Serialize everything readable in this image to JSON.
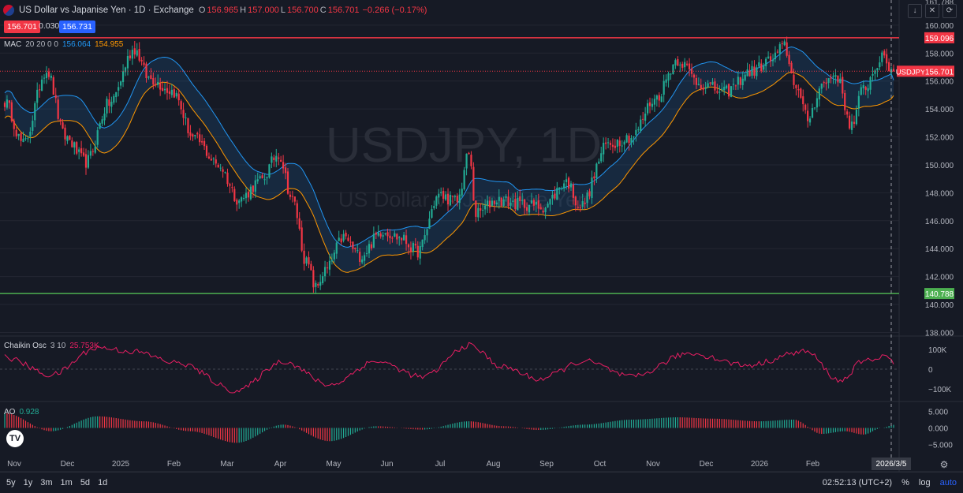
{
  "header": {
    "symbol_title": "US Dollar vs Japanise Yen · 1D · Exchange",
    "ohlc": [
      {
        "k": "O",
        "v": "156.965"
      },
      {
        "k": "H",
        "v": "157.000"
      },
      {
        "k": "L",
        "v": "156.700"
      },
      {
        "k": "C",
        "v": "156.701"
      },
      {
        "k": "",
        "v": "−0.266 (−0.17%)"
      }
    ],
    "sell_price": "156.701",
    "spread": "0.030",
    "buy_price": "156.731"
  },
  "indicators": {
    "mac": {
      "name": "MAC",
      "params": "20 20 0 0",
      "upper": "156.064",
      "lower": "154.955"
    },
    "chaikin": {
      "name": "Chaikin Osc",
      "params": "3 10",
      "value": "25.753K"
    },
    "ao": {
      "name": "AO",
      "value": "0.928"
    }
  },
  "watermark": {
    "main": "USDJPY, 1D",
    "sub": "US Dollar vs Japanise Yen"
  },
  "colors": {
    "up": "#22ab94",
    "down": "#f23645",
    "upper_band": "#2196f3",
    "lower_band": "#ff9800",
    "resistance": "#f23645",
    "support": "#4caf50",
    "chaikin": "#e91e63",
    "background": "#161a25"
  },
  "chart_data": [
    {
      "type": "candlestick",
      "title": "USDJPY, 1D",
      "x_ticks": [
        "Nov",
        "Dec",
        "2025",
        "Feb",
        "Mar",
        "Apr",
        "May",
        "Jun",
        "Jul",
        "Aug",
        "Sep",
        "Oct",
        "Nov",
        "Dec",
        "2026",
        "Feb"
      ],
      "cursor_date": "2026/3/5",
      "y_ticks": [
        138.0,
        140.0,
        142.0,
        144.0,
        146.0,
        148.0,
        150.0,
        152.0,
        154.0,
        156.0,
        158.0,
        160.0
      ],
      "ylim": [
        137.8,
        161.8
      ],
      "top_label": "161.788",
      "levels": [
        {
          "label": "159.096",
          "value": 159.096,
          "color": "#f23645"
        },
        {
          "label": "140.788",
          "value": 140.788,
          "color": "#4caf50"
        }
      ],
      "last_price": {
        "name": "USDJPY",
        "label": "156.701",
        "value": 156.701
      },
      "anchors": [
        [
          0,
          154.5
        ],
        [
          8,
          151.5
        ],
        [
          18,
          156.8
        ],
        [
          26,
          152.0
        ],
        [
          35,
          150.2
        ],
        [
          45,
          154.4
        ],
        [
          56,
          158.3
        ],
        [
          62,
          156.2
        ],
        [
          72,
          155.3
        ],
        [
          82,
          151.8
        ],
        [
          92,
          150.0
        ],
        [
          101,
          147.5
        ],
        [
          110,
          148.8
        ],
        [
          118,
          150.8
        ],
        [
          124,
          147.5
        ],
        [
          130,
          143.0
        ],
        [
          134,
          141.2
        ],
        [
          138,
          142.4
        ],
        [
          146,
          144.8
        ],
        [
          153,
          143.5
        ],
        [
          163,
          145.3
        ],
        [
          170,
          144.8
        ],
        [
          178,
          143.8
        ],
        [
          187,
          147.8
        ],
        [
          195,
          147.4
        ],
        [
          200,
          150.8
        ],
        [
          203,
          146.5
        ],
        [
          212,
          147.5
        ],
        [
          222,
          147.2
        ],
        [
          232,
          147.0
        ],
        [
          242,
          148.8
        ],
        [
          248,
          147.0
        ],
        [
          260,
          151.5
        ],
        [
          270,
          152.0
        ],
        [
          280,
          154.7
        ],
        [
          290,
          157.5
        ],
        [
          300,
          155.8
        ],
        [
          310,
          155.2
        ],
        [
          322,
          156.7
        ],
        [
          330,
          157.5
        ],
        [
          336,
          158.5
        ],
        [
          340,
          156.0
        ],
        [
          346,
          153.3
        ],
        [
          352,
          155.7
        ],
        [
          358,
          156.5
        ],
        [
          365,
          152.8
        ],
        [
          370,
          155.5
        ],
        [
          378,
          157.6
        ],
        [
          383,
          156.701
        ]
      ],
      "upper_band_last": 156.064,
      "lower_band_last": 154.955
    },
    {
      "type": "line",
      "name": "Chaikin Osc",
      "y_ticks": [
        "100K",
        "0",
        "−100K"
      ],
      "ylim": [
        -160,
        160
      ],
      "anchors": [
        [
          0,
          60
        ],
        [
          20,
          -30
        ],
        [
          40,
          110
        ],
        [
          55,
          90
        ],
        [
          75,
          30
        ],
        [
          100,
          -110
        ],
        [
          120,
          40
        ],
        [
          140,
          -80
        ],
        [
          160,
          40
        ],
        [
          180,
          -40
        ],
        [
          200,
          120
        ],
        [
          215,
          10
        ],
        [
          230,
          -50
        ],
        [
          250,
          40
        ],
        [
          270,
          -40
        ],
        [
          295,
          80
        ],
        [
          320,
          20
        ],
        [
          345,
          90
        ],
        [
          360,
          -60
        ],
        [
          370,
          40
        ],
        [
          380,
          70
        ],
        [
          383,
          25.753
        ]
      ]
    },
    {
      "type": "bar",
      "name": "AO",
      "y_ticks": [
        "5.000",
        "0.000",
        "−5.000"
      ],
      "ylim": [
        -7.5,
        7.5
      ],
      "anchors": [
        [
          0,
          4.5
        ],
        [
          20,
          -1.0
        ],
        [
          40,
          3.5
        ],
        [
          60,
          2.0
        ],
        [
          80,
          -1.0
        ],
        [
          100,
          -4.5
        ],
        [
          120,
          1.0
        ],
        [
          140,
          -4.0
        ],
        [
          160,
          0.5
        ],
        [
          180,
          -0.5
        ],
        [
          200,
          2.0
        ],
        [
          215,
          0.5
        ],
        [
          230,
          -0.6
        ],
        [
          250,
          1.0
        ],
        [
          270,
          2.5
        ],
        [
          290,
          3.2
        ],
        [
          305,
          2.8
        ],
        [
          325,
          2.0
        ],
        [
          340,
          2.5
        ],
        [
          352,
          -1.8
        ],
        [
          362,
          -1.0
        ],
        [
          370,
          -2.0
        ],
        [
          378,
          0.0
        ],
        [
          383,
          0.928
        ]
      ]
    }
  ],
  "bottom_bar": {
    "ranges": [
      "5y",
      "1y",
      "3m",
      "1m",
      "5d",
      "1d"
    ],
    "clock": "02:52:13 (UTC+2)",
    "percent": "%",
    "log": "log",
    "auto": "auto"
  },
  "toolbar_icons": [
    "arrow-down-icon",
    "collapse-icon",
    "refresh-icon"
  ]
}
